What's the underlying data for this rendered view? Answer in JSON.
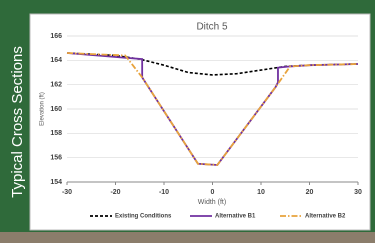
{
  "panel": {
    "label": "Typical Cross Sections"
  },
  "chart_data": {
    "type": "line",
    "title": "Ditch 5",
    "x_label": "Width (ft)",
    "y_label": "Elevation (ft)",
    "xlim": [
      -30,
      30
    ],
    "xticks": [
      -30,
      -20,
      -10,
      0,
      10,
      20,
      30
    ],
    "ylim": [
      154,
      166
    ],
    "yticks": [
      154,
      156,
      158,
      160,
      162,
      164,
      166
    ],
    "series": [
      {
        "name": "Existing Conditions",
        "color": "#000000",
        "style": "dashed",
        "x": [
          -30,
          -20,
          -15,
          -10,
          -5,
          0,
          5,
          10,
          15,
          20,
          30
        ],
        "values": [
          164.6,
          164.4,
          164.1,
          163.6,
          163.0,
          162.8,
          162.9,
          163.2,
          163.5,
          163.6,
          163.7
        ]
      },
      {
        "name": "Alternative B1",
        "color": "#7030a0",
        "style": "solid",
        "x": [
          -30,
          -14.5,
          -14.5,
          -3,
          1,
          13,
          13.5,
          13.5,
          16,
          20,
          30
        ],
        "values": [
          164.6,
          164.1,
          162.6,
          155.5,
          155.4,
          161.8,
          162.2,
          163.4,
          163.5,
          163.6,
          163.7
        ]
      },
      {
        "name": "Alternative B2",
        "color": "#e8a33d",
        "style": "dashdot",
        "x": [
          -30,
          -18,
          -14.5,
          -3,
          1,
          13,
          16,
          20,
          30
        ],
        "values": [
          164.6,
          164.4,
          162.6,
          155.5,
          155.4,
          161.8,
          163.5,
          163.6,
          163.7
        ]
      }
    ]
  }
}
